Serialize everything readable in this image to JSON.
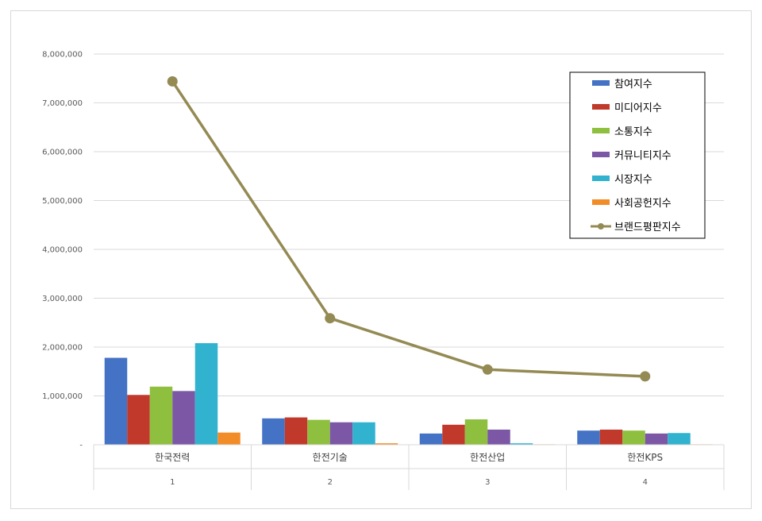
{
  "chart_data": {
    "type": "bar",
    "title": "",
    "xlabel": "",
    "ylabel": "",
    "ylim": [
      0,
      8000000
    ],
    "yticks": [
      "-",
      "1,000,000",
      "2,000,000",
      "3,000,000",
      "4,000,000",
      "5,000,000",
      "6,000,000",
      "7,000,000",
      "8,000,000"
    ],
    "grid": true,
    "legend_position": "top-right",
    "categories": [
      "한국전력",
      "한전기술",
      "한전산업",
      "한전KPS"
    ],
    "category_ranks": [
      "1",
      "2",
      "3",
      "4"
    ],
    "series": [
      {
        "name": "참여지수",
        "type": "bar",
        "color": "#4472c4",
        "values": [
          1780000,
          540000,
          230000,
          290000
        ]
      },
      {
        "name": "미디어지수",
        "type": "bar",
        "color": "#c0392b",
        "values": [
          1020000,
          560000,
          410000,
          310000
        ]
      },
      {
        "name": "소통지수",
        "type": "bar",
        "color": "#8fbf3f",
        "values": [
          1190000,
          510000,
          520000,
          290000
        ]
      },
      {
        "name": "커뮤니티지수",
        "type": "bar",
        "color": "#7b57a6",
        "values": [
          1100000,
          460000,
          310000,
          230000
        ]
      },
      {
        "name": "시장지수",
        "type": "bar",
        "color": "#31b3cf",
        "values": [
          2080000,
          460000,
          30000,
          240000
        ]
      },
      {
        "name": "사회공헌지수",
        "type": "bar",
        "color": "#f28c28",
        "values": [
          250000,
          30000,
          10000,
          10000
        ]
      },
      {
        "name": "브랜드평판지수",
        "type": "line",
        "color": "#948a54",
        "values": [
          7440000,
          2590000,
          1540000,
          1400000
        ]
      }
    ]
  }
}
